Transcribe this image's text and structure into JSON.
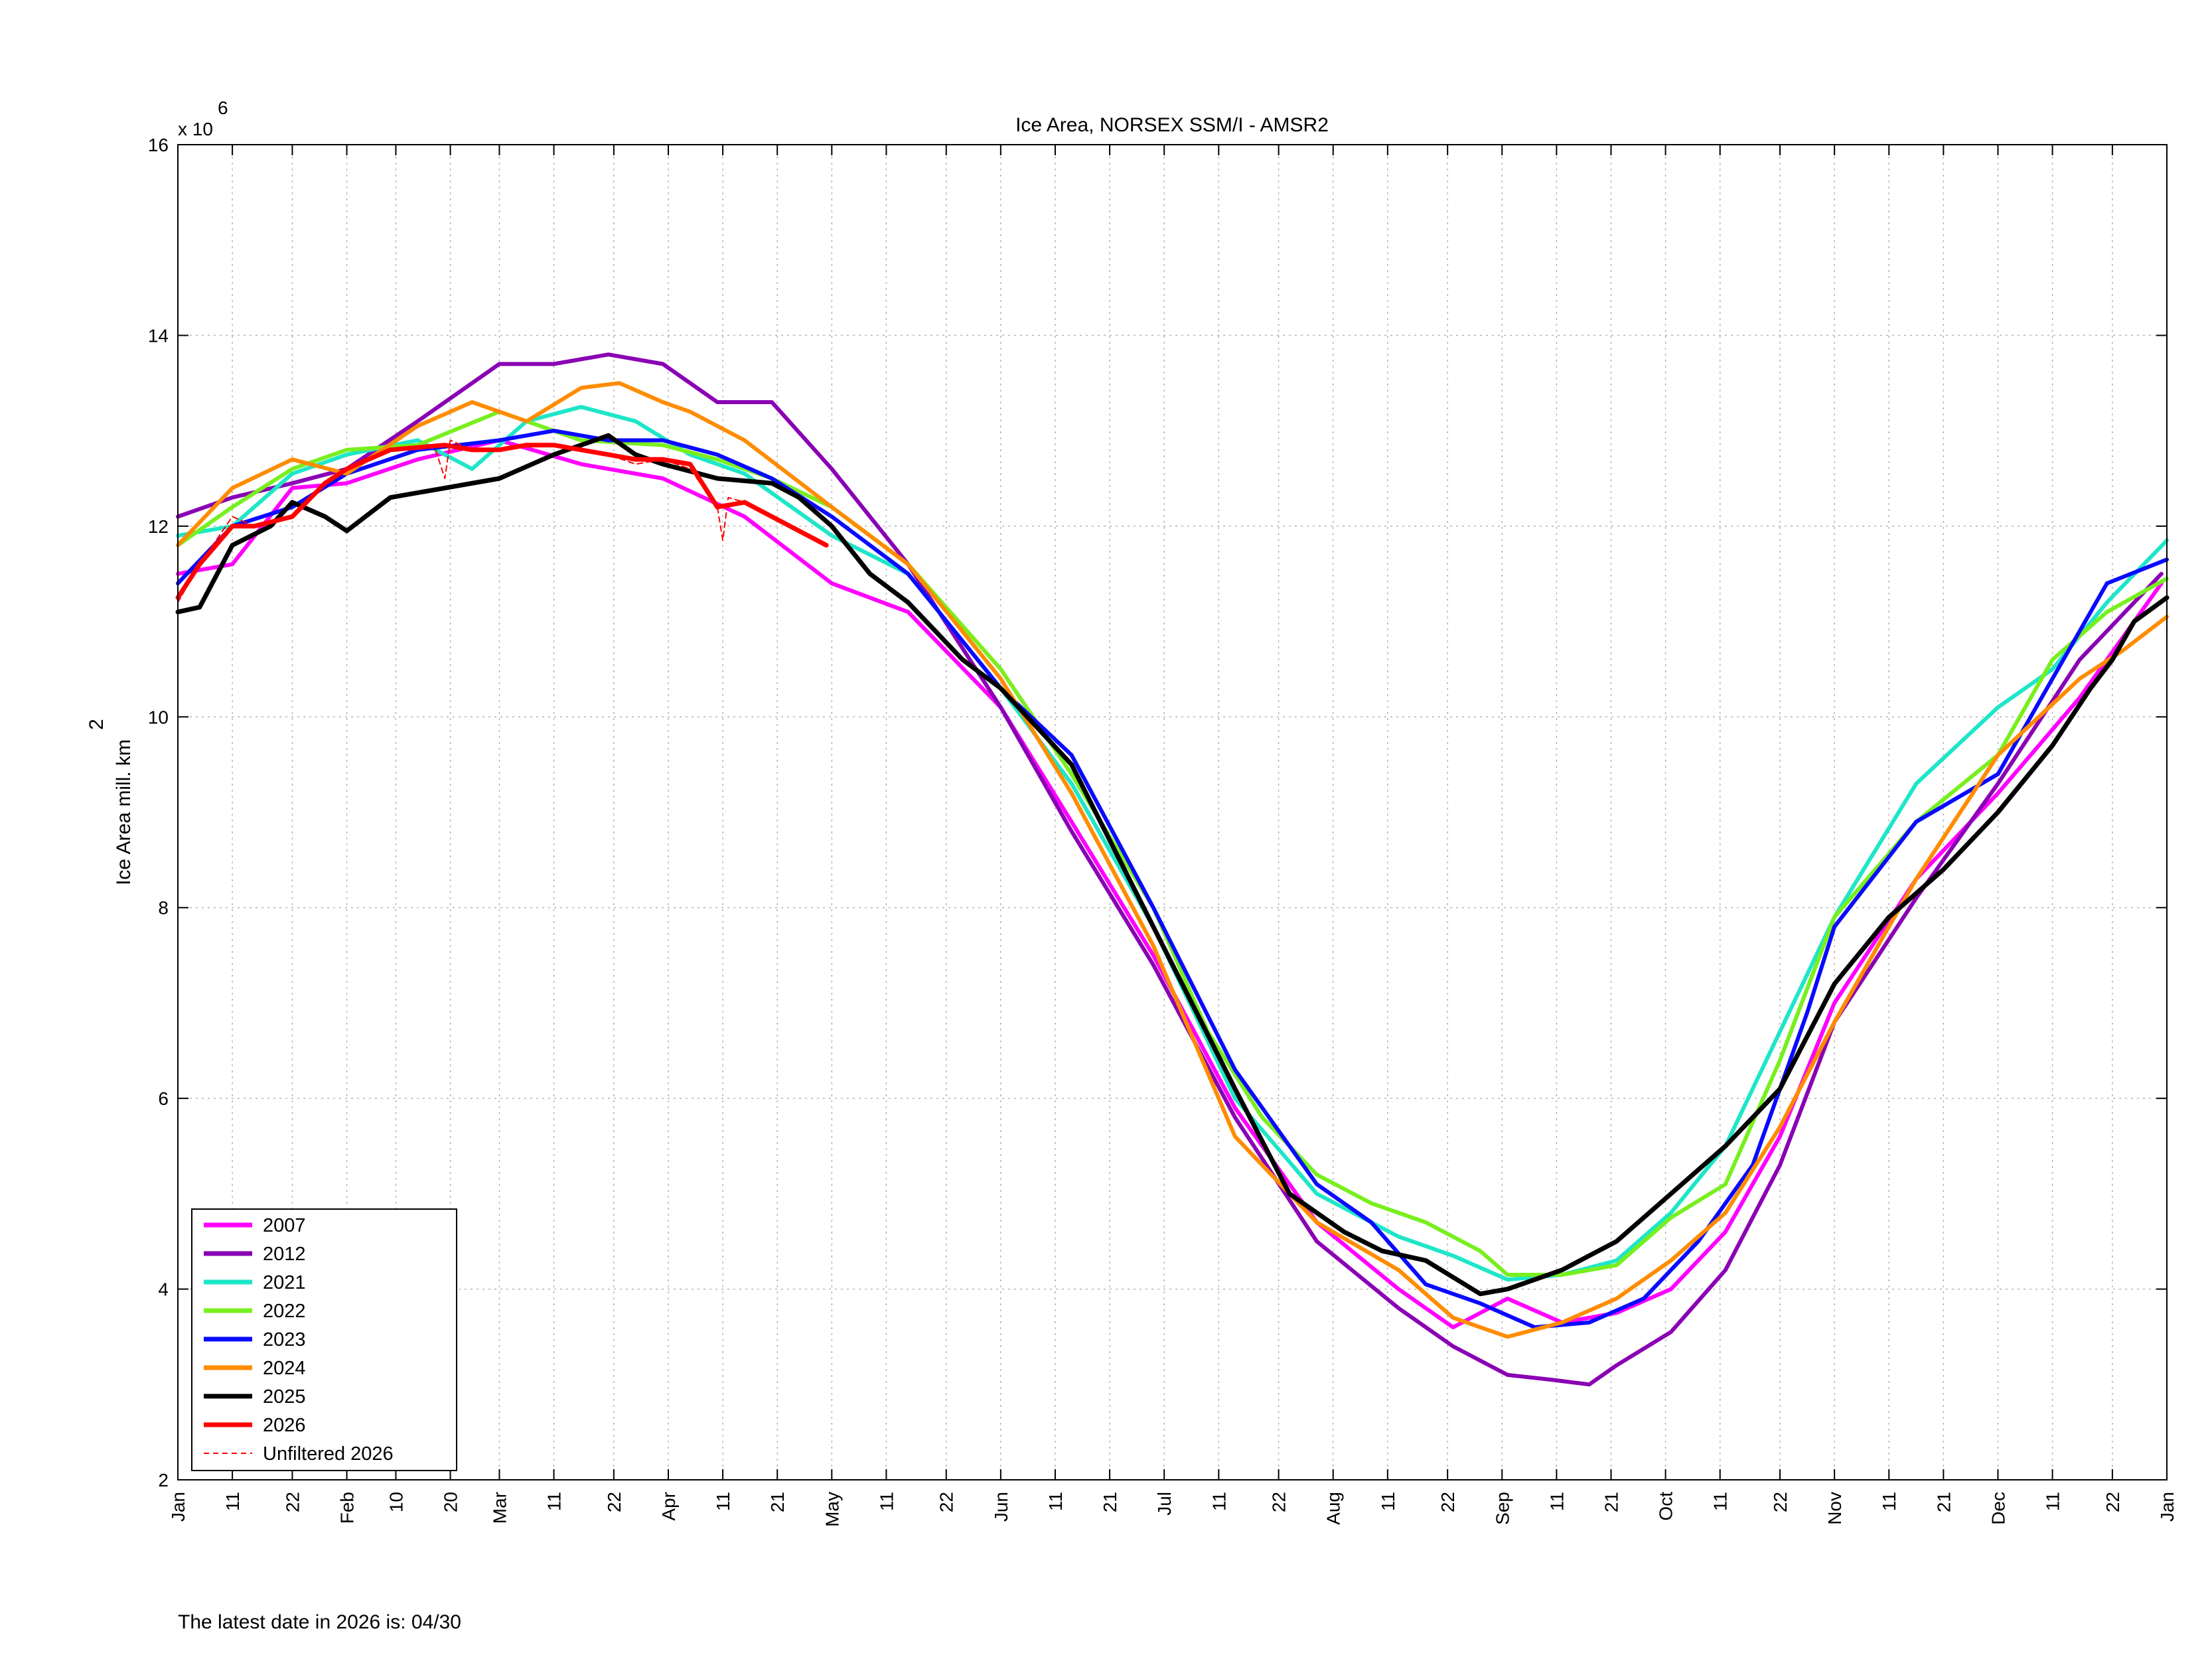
{
  "footer": {
    "note": "The latest date in 2026 is: 04/30"
  },
  "chart_data": {
    "type": "line",
    "title": "Ice Area, NORSEX SSM/I - AMSR2",
    "ylabel": "Ice Area mill. km",
    "ylabel_superscript": "2",
    "y_multiplier_base": "x 10",
    "y_multiplier_exp": "6",
    "ylim": [
      2,
      16
    ],
    "xlim": [
      1,
      366
    ],
    "grid": true,
    "legend_position": "bottom-left",
    "yticks": [
      2,
      4,
      6,
      8,
      10,
      12,
      14,
      16
    ],
    "xticks": [
      {
        "day": 1,
        "label": "Jan"
      },
      {
        "day": 11,
        "label": "11"
      },
      {
        "day": 22,
        "label": "22"
      },
      {
        "day": 32,
        "label": "Feb"
      },
      {
        "day": 41,
        "label": "10"
      },
      {
        "day": 51,
        "label": "20"
      },
      {
        "day": 60,
        "label": "Mar"
      },
      {
        "day": 70,
        "label": "11"
      },
      {
        "day": 81,
        "label": "22"
      },
      {
        "day": 91,
        "label": "Apr"
      },
      {
        "day": 101,
        "label": "11"
      },
      {
        "day": 111,
        "label": "21"
      },
      {
        "day": 121,
        "label": "May"
      },
      {
        "day": 131,
        "label": "11"
      },
      {
        "day": 142,
        "label": "22"
      },
      {
        "day": 152,
        "label": "Jun"
      },
      {
        "day": 162,
        "label": "11"
      },
      {
        "day": 172,
        "label": "21"
      },
      {
        "day": 182,
        "label": "Jul"
      },
      {
        "day": 192,
        "label": "11"
      },
      {
        "day": 203,
        "label": "22"
      },
      {
        "day": 213,
        "label": "Aug"
      },
      {
        "day": 223,
        "label": "11"
      },
      {
        "day": 234,
        "label": "22"
      },
      {
        "day": 244,
        "label": "Sep"
      },
      {
        "day": 254,
        "label": "11"
      },
      {
        "day": 264,
        "label": "21"
      },
      {
        "day": 274,
        "label": "Oct"
      },
      {
        "day": 284,
        "label": "11"
      },
      {
        "day": 295,
        "label": "22"
      },
      {
        "day": 305,
        "label": "Nov"
      },
      {
        "day": 315,
        "label": "11"
      },
      {
        "day": 325,
        "label": "21"
      },
      {
        "day": 335,
        "label": "Dec"
      },
      {
        "day": 345,
        "label": "11"
      },
      {
        "day": 356,
        "label": "22"
      },
      {
        "day": 366,
        "label": "Jan"
      }
    ],
    "series": [
      {
        "name": "2007",
        "color": "#ff00ff",
        "width": 6,
        "x": [
          1,
          11,
          22,
          32,
          45,
          60,
          75,
          90,
          105,
          121,
          135,
          152,
          165,
          180,
          195,
          210,
          225,
          235,
          245,
          255,
          265,
          275,
          285,
          295,
          305,
          320,
          335,
          350,
          365
        ],
        "y": [
          11.5,
          11.6,
          12.4,
          12.45,
          12.7,
          12.9,
          12.65,
          12.5,
          12.1,
          11.4,
          11.1,
          10.1,
          8.9,
          7.5,
          5.9,
          4.7,
          4.0,
          3.6,
          3.9,
          3.65,
          3.75,
          4.0,
          4.6,
          5.6,
          7.0,
          8.3,
          9.2,
          10.2,
          11.4
        ]
      },
      {
        "name": "2012",
        "color": "#8a00b4",
        "width": 6,
        "x": [
          1,
          11,
          22,
          32,
          45,
          60,
          70,
          80,
          90,
          100,
          110,
          121,
          135,
          152,
          165,
          180,
          195,
          210,
          225,
          235,
          245,
          253,
          260,
          265,
          275,
          285,
          295,
          305,
          320,
          335,
          350,
          365
        ],
        "y": [
          12.1,
          12.3,
          12.45,
          12.6,
          13.1,
          13.7,
          13.7,
          13.8,
          13.7,
          13.3,
          13.3,
          12.6,
          11.6,
          10.1,
          8.8,
          7.4,
          5.8,
          4.5,
          3.8,
          3.4,
          3.1,
          3.05,
          3.0,
          3.2,
          3.55,
          4.2,
          5.3,
          6.8,
          8.1,
          9.3,
          10.6,
          11.5
        ]
      },
      {
        "name": "2021",
        "color": "#1ee6c8",
        "width": 6,
        "x": [
          1,
          11,
          22,
          32,
          45,
          55,
          65,
          75,
          85,
          95,
          105,
          121,
          135,
          152,
          165,
          180,
          195,
          210,
          225,
          235,
          245,
          255,
          265,
          275,
          285,
          295,
          305,
          320,
          335,
          345,
          355,
          366
        ],
        "y": [
          11.9,
          12.0,
          12.55,
          12.75,
          12.9,
          12.6,
          13.1,
          13.25,
          13.1,
          12.75,
          12.55,
          11.9,
          11.5,
          10.3,
          9.3,
          7.8,
          6.0,
          5.0,
          4.55,
          4.35,
          4.1,
          4.15,
          4.3,
          4.8,
          5.5,
          6.7,
          7.9,
          9.3,
          10.1,
          10.5,
          11.2,
          11.85
        ]
      },
      {
        "name": "2022",
        "color": "#78ef1e",
        "width": 6,
        "x": [
          1,
          11,
          22,
          32,
          45,
          60,
          75,
          90,
          100,
          110,
          121,
          135,
          152,
          165,
          180,
          190,
          200,
          210,
          220,
          230,
          240,
          245,
          255,
          265,
          275,
          285,
          295,
          305,
          320,
          335,
          345,
          355,
          366
        ],
        "y": [
          11.8,
          12.2,
          12.6,
          12.8,
          12.85,
          13.2,
          12.9,
          12.85,
          12.7,
          12.5,
          12.2,
          11.6,
          10.5,
          9.4,
          8.0,
          6.7,
          5.8,
          5.2,
          4.9,
          4.7,
          4.4,
          4.15,
          4.15,
          4.25,
          4.75,
          5.1,
          6.4,
          7.9,
          8.9,
          9.6,
          10.6,
          11.1,
          11.45
        ]
      },
      {
        "name": "2023",
        "color": "#0a0aff",
        "width": 6,
        "x": [
          1,
          11,
          22,
          32,
          45,
          60,
          70,
          80,
          90,
          100,
          110,
          121,
          135,
          152,
          165,
          180,
          195,
          210,
          220,
          230,
          240,
          250,
          260,
          270,
          280,
          290,
          300,
          305,
          320,
          335,
          345,
          355,
          366
        ],
        "y": [
          11.4,
          12.0,
          12.2,
          12.55,
          12.8,
          12.9,
          13.0,
          12.9,
          12.9,
          12.75,
          12.5,
          12.1,
          11.5,
          10.3,
          9.6,
          8.0,
          6.3,
          5.1,
          4.7,
          4.05,
          3.85,
          3.6,
          3.65,
          3.9,
          4.5,
          5.3,
          6.9,
          7.8,
          8.9,
          9.4,
          10.4,
          11.4,
          11.65
        ]
      },
      {
        "name": "2024",
        "color": "#ff8c00",
        "width": 6,
        "x": [
          1,
          11,
          22,
          32,
          45,
          55,
          65,
          75,
          82,
          90,
          95,
          105,
          121,
          135,
          152,
          165,
          180,
          195,
          210,
          225,
          235,
          245,
          255,
          265,
          275,
          285,
          295,
          305,
          320,
          335,
          350,
          358,
          366
        ],
        "y": [
          11.8,
          12.4,
          12.7,
          12.55,
          13.05,
          13.3,
          13.1,
          13.45,
          13.5,
          13.3,
          13.2,
          12.9,
          12.2,
          11.6,
          10.4,
          9.2,
          7.6,
          5.6,
          4.7,
          4.2,
          3.7,
          3.5,
          3.65,
          3.9,
          4.3,
          4.8,
          5.7,
          6.8,
          8.3,
          9.6,
          10.4,
          10.7,
          11.05
        ]
      },
      {
        "name": "2025",
        "color": "#000000",
        "width": 7,
        "x": [
          1,
          5,
          11,
          18,
          22,
          28,
          32,
          40,
          50,
          60,
          70,
          80,
          85,
          90,
          100,
          110,
          115,
          121,
          128,
          135,
          145,
          152,
          165,
          180,
          195,
          205,
          215,
          222,
          230,
          240,
          245,
          255,
          265,
          275,
          285,
          295,
          305,
          315,
          325,
          335,
          345,
          352,
          356,
          360,
          366
        ],
        "y": [
          11.1,
          11.15,
          11.8,
          12.0,
          12.25,
          12.1,
          11.95,
          12.3,
          12.4,
          12.5,
          12.75,
          12.95,
          12.75,
          12.65,
          12.5,
          12.45,
          12.3,
          12.0,
          11.5,
          11.2,
          10.6,
          10.3,
          9.5,
          7.8,
          6.1,
          5.0,
          4.6,
          4.4,
          4.3,
          3.95,
          4.0,
          4.2,
          4.5,
          5.0,
          5.5,
          6.1,
          7.2,
          7.9,
          8.4,
          9.0,
          9.7,
          10.3,
          10.6,
          11.0,
          11.25
        ]
      },
      {
        "name": "2026",
        "color": "#ff0000",
        "width": 7,
        "x": [
          1,
          5,
          11,
          15,
          22,
          28,
          32,
          40,
          50,
          55,
          60,
          65,
          70,
          75,
          80,
          85,
          90,
          95,
          100,
          105,
          110,
          115,
          120
        ],
        "y": [
          11.25,
          11.6,
          12.0,
          12.0,
          12.1,
          12.45,
          12.6,
          12.8,
          12.85,
          12.8,
          12.8,
          12.85,
          12.85,
          12.8,
          12.75,
          12.7,
          12.7,
          12.65,
          12.2,
          12.25,
          12.1,
          11.95,
          11.8
        ]
      },
      {
        "name": "Unfiltered 2026",
        "color": "#ff0000",
        "width": 2,
        "dashed": true,
        "x": [
          1,
          5,
          11,
          15,
          22,
          28,
          32,
          40,
          48,
          50,
          51,
          55,
          60,
          65,
          70,
          75,
          80,
          85,
          90,
          95,
          100,
          101,
          102,
          105,
          110,
          115,
          120
        ],
        "y": [
          11.2,
          11.6,
          12.1,
          12.0,
          12.1,
          12.45,
          12.6,
          12.8,
          12.85,
          12.5,
          12.9,
          12.8,
          12.8,
          12.85,
          12.85,
          12.8,
          12.75,
          12.65,
          12.7,
          12.6,
          12.2,
          11.85,
          12.3,
          12.25,
          12.1,
          11.95,
          11.8
        ]
      }
    ]
  }
}
